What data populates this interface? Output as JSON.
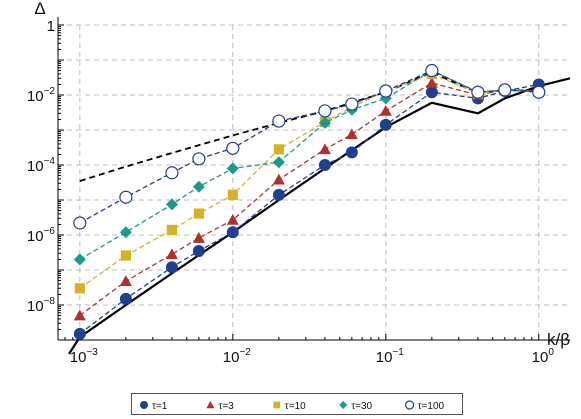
{
  "chart_data": {
    "type": "scatter",
    "title": "",
    "xlabel": "k/β",
    "ylabel": "Δ",
    "xscale": "log",
    "yscale": "log",
    "xlim": [
      0.00072,
      1.6
    ],
    "ylim": [
      1e-09,
      1
    ],
    "grid": true,
    "legend_position": "bottom",
    "x_tick_labels": [
      {
        "value": 0.001,
        "mant": "10",
        "exp": "−3"
      },
      {
        "value": 0.01,
        "mant": "10",
        "exp": "−2"
      },
      {
        "value": 0.1,
        "mant": "10",
        "exp": "−1"
      },
      {
        "value": 1,
        "mant": "10",
        "exp": "0"
      }
    ],
    "y_tick_labels": [
      {
        "value": 1,
        "mant": "1",
        "exp": ""
      },
      {
        "value": 0.01,
        "mant": "10",
        "exp": "−2"
      },
      {
        "value": 0.0001,
        "mant": "10",
        "exp": "−4"
      },
      {
        "value": 1e-06,
        "mant": "10",
        "exp": "−6"
      },
      {
        "value": 1e-08,
        "mant": "10",
        "exp": "−8"
      }
    ],
    "x": [
      0.001,
      0.002,
      0.004,
      0.006,
      0.01,
      0.02,
      0.04,
      0.06,
      0.1,
      0.2,
      0.4,
      0.6,
      1.0
    ],
    "series": [
      {
        "name": "τ=1",
        "marker": "circle",
        "color": "#1f3f8f",
        "values": [
          1.5e-09,
          1.5e-08,
          1.2e-07,
          3.5e-07,
          1.2e-06,
          1.4e-05,
          0.0001,
          0.00023,
          0.0014,
          0.012,
          0.008,
          0.013,
          0.02
        ]
      },
      {
        "name": "τ=3",
        "marker": "triangle",
        "color": "#b03030",
        "values": [
          5e-09,
          4.8e-08,
          2.8e-07,
          8.2e-07,
          2.7e-06,
          3.8e-05,
          0.00028,
          0.00075,
          0.0035,
          0.022,
          0.01,
          0.014,
          0.013
        ]
      },
      {
        "name": "τ=10",
        "marker": "square",
        "color": "#d4b226",
        "values": [
          3e-08,
          2.6e-07,
          1.4e-06,
          4.1e-06,
          1.4e-05,
          0.00028,
          0.0017,
          0.0045,
          0.013,
          0.04,
          0.011,
          0.014,
          0.012
        ]
      },
      {
        "name": "τ=30",
        "marker": "diamond",
        "color": "#1a9a8a",
        "values": [
          2e-07,
          1.2e-06,
          7.5e-06,
          2.4e-05,
          8e-05,
          0.00012,
          0.0016,
          0.0038,
          0.008,
          0.05,
          0.012,
          0.014,
          0.012
        ]
      },
      {
        "name": "τ=100",
        "marker": "circle-open",
        "color": "#1f3f8f",
        "values": [
          2.2e-06,
          1.2e-05,
          6e-05,
          0.00015,
          0.0003,
          0.0018,
          0.0035,
          0.0055,
          0.013,
          0.05,
          0.012,
          0.014,
          0.012
        ]
      }
    ],
    "reference_curves": [
      {
        "style": "solid",
        "color": "#000000",
        "x": [
          0.00085,
          0.001,
          0.002,
          0.004,
          0.01,
          0.02,
          0.04,
          0.1,
          0.2,
          0.4,
          0.6,
          1.0,
          1.6
        ],
        "values": [
          4e-10,
          1.2e-09,
          1e-08,
          8e-08,
          1.2e-06,
          1e-05,
          8e-05,
          0.0012,
          0.006,
          0.003,
          0.008,
          0.018,
          0.03
        ]
      },
      {
        "style": "dashed",
        "color": "#000000",
        "x": [
          0.001,
          0.002,
          0.004,
          0.01,
          0.02,
          0.04,
          0.1,
          0.2,
          0.4,
          0.6,
          1.0
        ],
        "values": [
          3.5e-05,
          9e-05,
          0.00022,
          0.0007,
          0.0016,
          0.0035,
          0.012,
          0.045,
          0.011,
          0.014,
          0.013
        ]
      }
    ]
  }
}
